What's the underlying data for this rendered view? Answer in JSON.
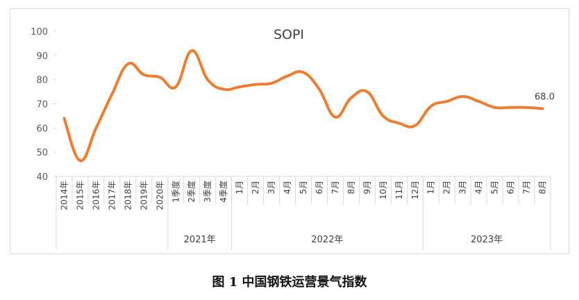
{
  "figure_caption": "图 1  中国钢铁运营景气指数",
  "chart_data": {
    "type": "line",
    "title": "SOPI",
    "xlabel": "",
    "ylabel": "",
    "ylim": [
      40,
      100
    ],
    "yticks": [
      40,
      50,
      60,
      70,
      80,
      90,
      100
    ],
    "grid": false,
    "legend": "none",
    "line_color": "#ED7D31",
    "categories": [
      "2014年",
      "2015年",
      "2016年",
      "2017年",
      "2018年",
      "2019年",
      "2020年",
      "1季度",
      "2季度",
      "3季度",
      "4季度",
      "1月",
      "2月",
      "3月",
      "4月",
      "5月",
      "6月",
      "7月",
      "8月",
      "9月",
      "10月",
      "11月",
      "12月",
      "1月",
      "2月",
      "3月",
      "4月",
      "5月",
      "6月",
      "7月",
      "8月"
    ],
    "values": [
      64,
      46.5,
      60,
      74,
      86.5,
      82,
      81,
      77,
      92,
      80,
      76,
      77,
      78,
      78.5,
      81.5,
      83,
      76,
      64.5,
      72.5,
      75,
      65,
      62,
      61,
      69,
      71,
      73,
      71,
      68.5,
      68.5,
      68.5,
      68.0
    ],
    "groups": [
      {
        "label": "",
        "start": 0,
        "end": 6
      },
      {
        "label": "2021年",
        "start": 7,
        "end": 10
      },
      {
        "label": "2022年",
        "start": 11,
        "end": 22
      },
      {
        "label": "2023年",
        "start": 23,
        "end": 30
      }
    ],
    "data_labels": [
      {
        "index": 30,
        "text": "68.0"
      }
    ]
  }
}
